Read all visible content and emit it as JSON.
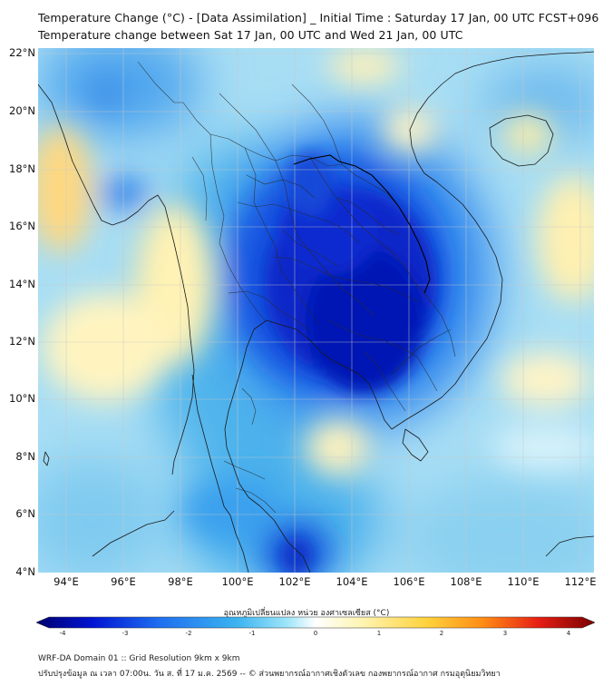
{
  "title": {
    "line1": "Temperature Change (°C) - [Data Assimilation] _ Initial Time : Saturday 17 Jan, 00 UTC FCST+096",
    "line2": "Temperature change between Sat 17 Jan, 00 UTC and Wed 21 Jan, 00 UTC"
  },
  "map": {
    "lat_labels": [
      "22°N",
      "20°N",
      "18°N",
      "16°N",
      "14°N",
      "12°N",
      "10°N",
      "8°N",
      "6°N",
      "4°N"
    ],
    "lon_labels": [
      "94°E",
      "96°E",
      "98°E",
      "100°E",
      "102°E",
      "104°E",
      "106°E",
      "108°E",
      "110°E",
      "112°E"
    ],
    "extent": {
      "lon_min": 93,
      "lon_max": 112.5,
      "lat_min": 4,
      "lat_max": 22.2
    },
    "gridlines": true
  },
  "colorbar": {
    "label": "อุณหภูมิเปลี่ยนแปลง หน่วย องศาเซลเซียส (°C)",
    "ticks": [
      "-4",
      "-3",
      "-2",
      "-1",
      "0",
      "1",
      "2",
      "3",
      "4"
    ],
    "range": [
      -4,
      4
    ],
    "colors": [
      "#00006e",
      "#0014d2",
      "#1e6ef0",
      "#3cb4f0",
      "#a0e6fa",
      "#ffffff",
      "#fff5b4",
      "#ffd23c",
      "#ff8c14",
      "#e61e14",
      "#780000"
    ]
  },
  "footer": {
    "line1": "WRF-DA Domain 01 :: Grid Resolution 9km x 9km",
    "line2": "ปรับปรุงข้อมูล ณ เวลา 07:00น. วัน ส. ที่ 17 ม.ค. 2569 -- © ส่วนพยากรณ์อากาศเชิงตัวเลข กองพยากรณ์อากาศ กรมอุตุนิยมวิทยา"
  }
}
